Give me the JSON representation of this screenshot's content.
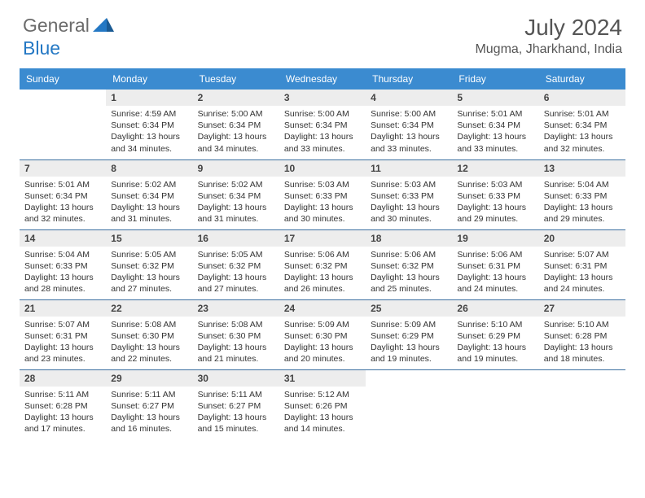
{
  "brand": {
    "part1": "General",
    "part2": "Blue",
    "color_gray": "#6b6b6b",
    "color_blue": "#2478c4"
  },
  "title": "July 2024",
  "location": "Mugma, Jharkhand, India",
  "colors": {
    "header_bg": "#3b8bd0",
    "header_text": "#ffffff",
    "daynum_bg": "#ededed",
    "border": "#3b6fa0",
    "body_text": "#333333"
  },
  "weekdays": [
    "Sunday",
    "Monday",
    "Tuesday",
    "Wednesday",
    "Thursday",
    "Friday",
    "Saturday"
  ],
  "weeks": [
    [
      {
        "n": "",
        "sr": "",
        "ss": "",
        "dl": ""
      },
      {
        "n": "1",
        "sr": "Sunrise: 4:59 AM",
        "ss": "Sunset: 6:34 PM",
        "dl": "Daylight: 13 hours and 34 minutes."
      },
      {
        "n": "2",
        "sr": "Sunrise: 5:00 AM",
        "ss": "Sunset: 6:34 PM",
        "dl": "Daylight: 13 hours and 34 minutes."
      },
      {
        "n": "3",
        "sr": "Sunrise: 5:00 AM",
        "ss": "Sunset: 6:34 PM",
        "dl": "Daylight: 13 hours and 33 minutes."
      },
      {
        "n": "4",
        "sr": "Sunrise: 5:00 AM",
        "ss": "Sunset: 6:34 PM",
        "dl": "Daylight: 13 hours and 33 minutes."
      },
      {
        "n": "5",
        "sr": "Sunrise: 5:01 AM",
        "ss": "Sunset: 6:34 PM",
        "dl": "Daylight: 13 hours and 33 minutes."
      },
      {
        "n": "6",
        "sr": "Sunrise: 5:01 AM",
        "ss": "Sunset: 6:34 PM",
        "dl": "Daylight: 13 hours and 32 minutes."
      }
    ],
    [
      {
        "n": "7",
        "sr": "Sunrise: 5:01 AM",
        "ss": "Sunset: 6:34 PM",
        "dl": "Daylight: 13 hours and 32 minutes."
      },
      {
        "n": "8",
        "sr": "Sunrise: 5:02 AM",
        "ss": "Sunset: 6:34 PM",
        "dl": "Daylight: 13 hours and 31 minutes."
      },
      {
        "n": "9",
        "sr": "Sunrise: 5:02 AM",
        "ss": "Sunset: 6:34 PM",
        "dl": "Daylight: 13 hours and 31 minutes."
      },
      {
        "n": "10",
        "sr": "Sunrise: 5:03 AM",
        "ss": "Sunset: 6:33 PM",
        "dl": "Daylight: 13 hours and 30 minutes."
      },
      {
        "n": "11",
        "sr": "Sunrise: 5:03 AM",
        "ss": "Sunset: 6:33 PM",
        "dl": "Daylight: 13 hours and 30 minutes."
      },
      {
        "n": "12",
        "sr": "Sunrise: 5:03 AM",
        "ss": "Sunset: 6:33 PM",
        "dl": "Daylight: 13 hours and 29 minutes."
      },
      {
        "n": "13",
        "sr": "Sunrise: 5:04 AM",
        "ss": "Sunset: 6:33 PM",
        "dl": "Daylight: 13 hours and 29 minutes."
      }
    ],
    [
      {
        "n": "14",
        "sr": "Sunrise: 5:04 AM",
        "ss": "Sunset: 6:33 PM",
        "dl": "Daylight: 13 hours and 28 minutes."
      },
      {
        "n": "15",
        "sr": "Sunrise: 5:05 AM",
        "ss": "Sunset: 6:32 PM",
        "dl": "Daylight: 13 hours and 27 minutes."
      },
      {
        "n": "16",
        "sr": "Sunrise: 5:05 AM",
        "ss": "Sunset: 6:32 PM",
        "dl": "Daylight: 13 hours and 27 minutes."
      },
      {
        "n": "17",
        "sr": "Sunrise: 5:06 AM",
        "ss": "Sunset: 6:32 PM",
        "dl": "Daylight: 13 hours and 26 minutes."
      },
      {
        "n": "18",
        "sr": "Sunrise: 5:06 AM",
        "ss": "Sunset: 6:32 PM",
        "dl": "Daylight: 13 hours and 25 minutes."
      },
      {
        "n": "19",
        "sr": "Sunrise: 5:06 AM",
        "ss": "Sunset: 6:31 PM",
        "dl": "Daylight: 13 hours and 24 minutes."
      },
      {
        "n": "20",
        "sr": "Sunrise: 5:07 AM",
        "ss": "Sunset: 6:31 PM",
        "dl": "Daylight: 13 hours and 24 minutes."
      }
    ],
    [
      {
        "n": "21",
        "sr": "Sunrise: 5:07 AM",
        "ss": "Sunset: 6:31 PM",
        "dl": "Daylight: 13 hours and 23 minutes."
      },
      {
        "n": "22",
        "sr": "Sunrise: 5:08 AM",
        "ss": "Sunset: 6:30 PM",
        "dl": "Daylight: 13 hours and 22 minutes."
      },
      {
        "n": "23",
        "sr": "Sunrise: 5:08 AM",
        "ss": "Sunset: 6:30 PM",
        "dl": "Daylight: 13 hours and 21 minutes."
      },
      {
        "n": "24",
        "sr": "Sunrise: 5:09 AM",
        "ss": "Sunset: 6:30 PM",
        "dl": "Daylight: 13 hours and 20 minutes."
      },
      {
        "n": "25",
        "sr": "Sunrise: 5:09 AM",
        "ss": "Sunset: 6:29 PM",
        "dl": "Daylight: 13 hours and 19 minutes."
      },
      {
        "n": "26",
        "sr": "Sunrise: 5:10 AM",
        "ss": "Sunset: 6:29 PM",
        "dl": "Daylight: 13 hours and 19 minutes."
      },
      {
        "n": "27",
        "sr": "Sunrise: 5:10 AM",
        "ss": "Sunset: 6:28 PM",
        "dl": "Daylight: 13 hours and 18 minutes."
      }
    ],
    [
      {
        "n": "28",
        "sr": "Sunrise: 5:11 AM",
        "ss": "Sunset: 6:28 PM",
        "dl": "Daylight: 13 hours and 17 minutes."
      },
      {
        "n": "29",
        "sr": "Sunrise: 5:11 AM",
        "ss": "Sunset: 6:27 PM",
        "dl": "Daylight: 13 hours and 16 minutes."
      },
      {
        "n": "30",
        "sr": "Sunrise: 5:11 AM",
        "ss": "Sunset: 6:27 PM",
        "dl": "Daylight: 13 hours and 15 minutes."
      },
      {
        "n": "31",
        "sr": "Sunrise: 5:12 AM",
        "ss": "Sunset: 6:26 PM",
        "dl": "Daylight: 13 hours and 14 minutes."
      },
      {
        "n": "",
        "sr": "",
        "ss": "",
        "dl": ""
      },
      {
        "n": "",
        "sr": "",
        "ss": "",
        "dl": ""
      },
      {
        "n": "",
        "sr": "",
        "ss": "",
        "dl": ""
      }
    ]
  ]
}
